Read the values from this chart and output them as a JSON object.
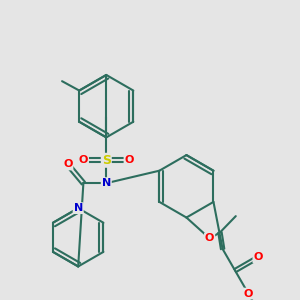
{
  "bg_color": "#e5e5e5",
  "bond_color": "#2d6e5e",
  "bond_width": 1.5,
  "atom_colors": {
    "O": "#ff0000",
    "N": "#0000cd",
    "S": "#cccc00",
    "C": "#2d6e5e"
  },
  "font_size": 8
}
